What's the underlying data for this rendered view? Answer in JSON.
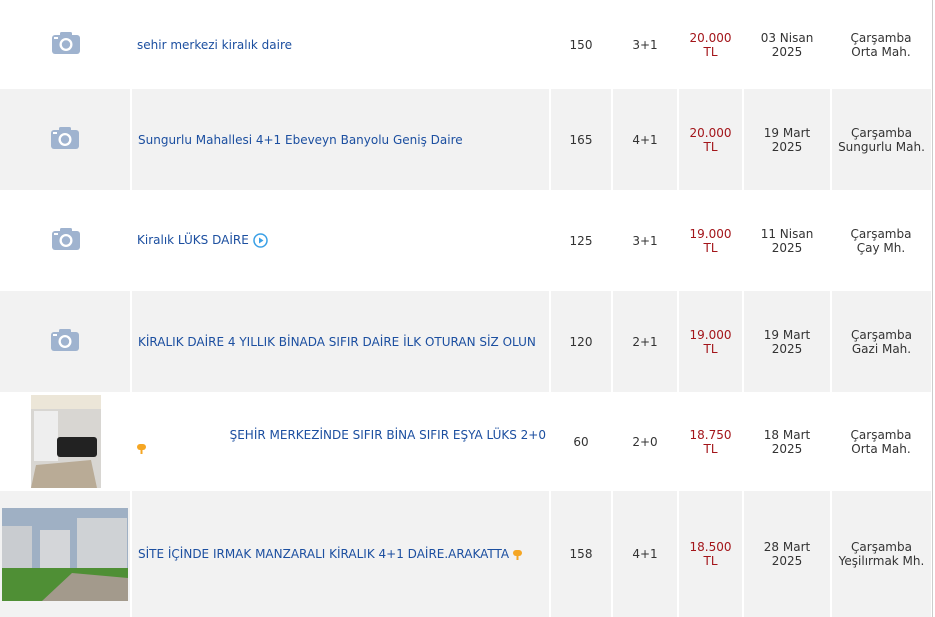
{
  "listings": [
    {
      "thumb": "camera-placeholder",
      "title": "sehir merkezi kiralık daire",
      "m2": "150",
      "rooms": "3+1",
      "price": "20.000 TL",
      "date1": "03 Nisan",
      "date2": "2025",
      "loc1": "Çarşamba",
      "loc2": "Orta Mah."
    },
    {
      "thumb": "camera-placeholder",
      "title": "Sungurlu Mahallesi 4+1 Ebeveyn Banyolu Geniş Daire",
      "m2": "165",
      "rooms": "4+1",
      "price": "20.000 TL",
      "date1": "19 Mart",
      "date2": "2025",
      "loc1": "Çarşamba",
      "loc2": "Sungurlu Mah."
    },
    {
      "thumb": "camera-placeholder",
      "title": "Kiralık LÜKS DAİRE",
      "video": true,
      "m2": "125",
      "rooms": "3+1",
      "price": "19.000 TL",
      "date1": "11 Nisan",
      "date2": "2025",
      "loc1": "Çarşamba",
      "loc2": "Çay Mh."
    },
    {
      "thumb": "camera-placeholder",
      "title": "KİRALIK DAİRE 4 YILLIK BİNADA SIFIR DAİRE İLK OTURAN SİZ OLUN",
      "m2": "120",
      "rooms": "2+1",
      "price": "19.000 TL",
      "date1": "19 Mart",
      "date2": "2025",
      "loc1": "Çarşamba",
      "loc2": "Gazi Mah."
    },
    {
      "thumb": "room-photo",
      "title": "ŞEHİR MERKEZİNDE SIFIR BİNA SIFIR EŞYA LÜKS 2+0",
      "m2": "60",
      "rooms": "2+0",
      "price": "18.750 TL",
      "date1": "18 Mart",
      "date2": "2025",
      "loc1": "Çarşamba",
      "loc2": "Orta Mah."
    },
    {
      "thumb": "building-photo",
      "title": "SİTE İÇİNDE IRMAK MANZARALI KİRALIK 4+1 DAİRE.ARAKATTA",
      "m2": "158",
      "rooms": "4+1",
      "price": "18.500 TL",
      "date1": "28 Mart",
      "date2": "2025",
      "loc1": "Çarşamba",
      "loc2": "Yeşilırmak Mh."
    }
  ],
  "colors": {
    "title": "#1c4fa0",
    "price": "#a3151a",
    "pin": "#f5a623",
    "camera": "#9fb3cf"
  }
}
